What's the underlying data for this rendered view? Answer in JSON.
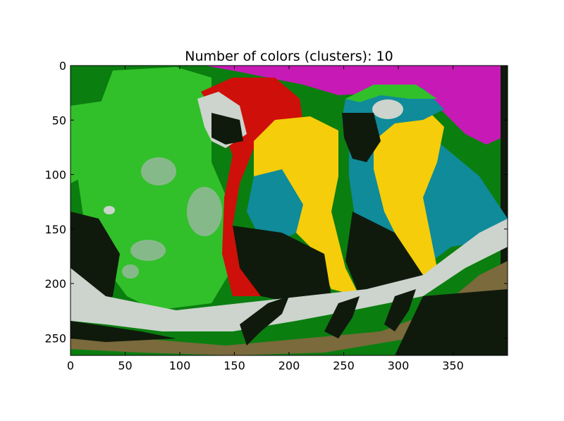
{
  "figure": {
    "title": "Number of colors (clusters): 10",
    "image_description_hidden": "",
    "palette": {
      "dark": "#0f1a0c",
      "dark_green": "#0b7e10",
      "green": "#31c02a",
      "pale_green": "#86b98a",
      "light_gray": "#ccd4cd",
      "magenta": "#c719b5",
      "red": "#cf0f0a",
      "yellow": "#f5cd0a",
      "teal": "#0f8b9a",
      "brown": "#7a6a3c"
    },
    "x_ticks": [
      "0",
      "50",
      "100",
      "150",
      "200",
      "250",
      "300",
      "350"
    ],
    "y_ticks": [
      "0",
      "50",
      "100",
      "150",
      "200",
      "250"
    ],
    "x_tick_values": [
      0,
      50,
      100,
      150,
      200,
      250,
      300,
      350
    ],
    "y_tick_values": [
      0,
      50,
      100,
      150,
      200,
      250
    ],
    "x_range": [
      0,
      400
    ],
    "y_range": [
      0,
      266
    ]
  }
}
